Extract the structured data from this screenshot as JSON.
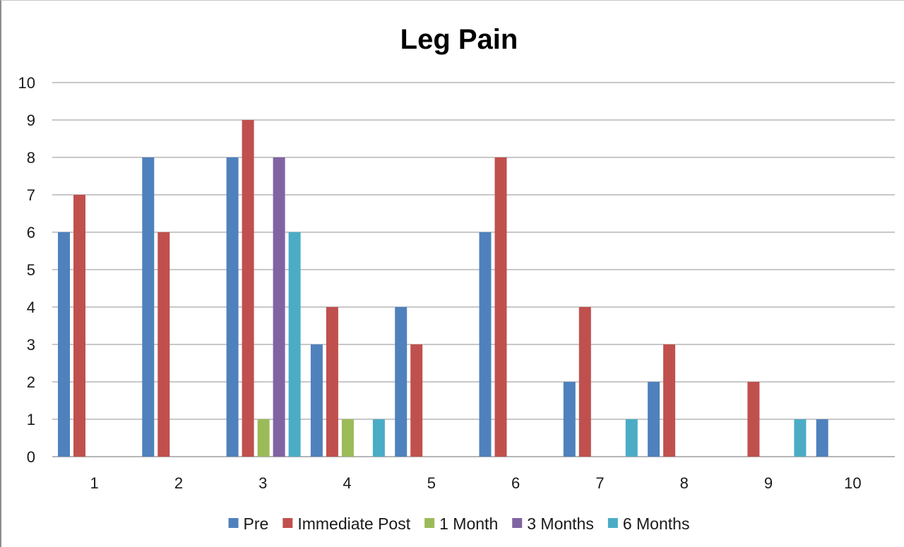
{
  "chart_data": {
    "type": "bar",
    "title": "Leg Pain",
    "xlabel": "",
    "ylabel": "",
    "ylim": [
      0,
      10
    ],
    "yticks": [
      0,
      1,
      2,
      3,
      4,
      5,
      6,
      7,
      8,
      9,
      10
    ],
    "categories": [
      "1",
      "2",
      "3",
      "4",
      "5",
      "6",
      "7",
      "8",
      "9",
      "10"
    ],
    "grid": true,
    "legend_position": "bottom",
    "series": [
      {
        "name": "Pre",
        "color": "#4f81bd",
        "values": [
          6,
          8,
          8,
          3,
          4,
          6,
          2,
          2,
          0,
          1
        ]
      },
      {
        "name": "Immediate Post",
        "color": "#c0504d",
        "values": [
          7,
          6,
          9,
          4,
          3,
          8,
          4,
          3,
          2,
          0
        ]
      },
      {
        "name": "1 Month",
        "color": "#9bbb59",
        "values": [
          0,
          0,
          1,
          1,
          0,
          0,
          0,
          0,
          0,
          0
        ]
      },
      {
        "name": "3 Months",
        "color": "#8064a2",
        "values": [
          0,
          0,
          8,
          0,
          0,
          0,
          0,
          0,
          0,
          0
        ]
      },
      {
        "name": "6 Months",
        "color": "#4bacc6",
        "values": [
          0,
          0,
          6,
          1,
          0,
          0,
          1,
          0,
          1,
          0
        ]
      }
    ]
  }
}
